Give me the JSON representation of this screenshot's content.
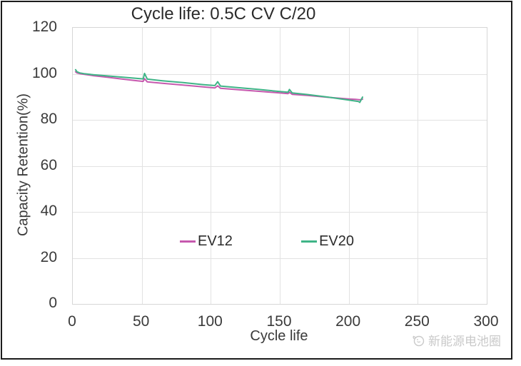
{
  "chart_data": {
    "type": "line",
    "title": "Cycle life: 0.5C CV C/20",
    "xlabel": "Cycle life",
    "ylabel": "Capacity Retention(%)",
    "xlim": [
      0,
      300
    ],
    "ylim": [
      0,
      120
    ],
    "x_ticks": [
      0,
      50,
      100,
      150,
      200,
      250,
      300
    ],
    "y_ticks": [
      0,
      20,
      40,
      60,
      80,
      100,
      120
    ],
    "grid": true,
    "legend_position": "inside-lower-center",
    "series": [
      {
        "name": "EV12",
        "color": "#c659ae",
        "points": [
          [
            2,
            100.9
          ],
          [
            3,
            100.4
          ],
          [
            5,
            100.1
          ],
          [
            8,
            99.8
          ],
          [
            15,
            99.2
          ],
          [
            25,
            98.5
          ],
          [
            35,
            97.8
          ],
          [
            45,
            97.1
          ],
          [
            51,
            96.7
          ],
          [
            52,
            97.9
          ],
          [
            54,
            96.5
          ],
          [
            65,
            95.9
          ],
          [
            80,
            95.1
          ],
          [
            95,
            94.3
          ],
          [
            103,
            93.9
          ],
          [
            105,
            94.8
          ],
          [
            107,
            93.7
          ],
          [
            120,
            93.1
          ],
          [
            135,
            92.4
          ],
          [
            150,
            91.7
          ],
          [
            156,
            91.4
          ],
          [
            157,
            92.0
          ],
          [
            159,
            91.1
          ],
          [
            170,
            90.6
          ],
          [
            185,
            89.8
          ],
          [
            200,
            89.1
          ],
          [
            205,
            88.9
          ],
          [
            208,
            88.7
          ],
          [
            210,
            89.0
          ]
        ]
      },
      {
        "name": "EV20",
        "color": "#3fb487",
        "points": [
          [
            2,
            101.8
          ],
          [
            3,
            100.9
          ],
          [
            5,
            100.4
          ],
          [
            8,
            100.1
          ],
          [
            15,
            99.6
          ],
          [
            25,
            99.1
          ],
          [
            35,
            98.6
          ],
          [
            45,
            98.1
          ],
          [
            51,
            97.8
          ],
          [
            52,
            100.2
          ],
          [
            54,
            97.7
          ],
          [
            65,
            97.0
          ],
          [
            80,
            96.2
          ],
          [
            95,
            95.3
          ],
          [
            103,
            94.9
          ],
          [
            105,
            96.6
          ],
          [
            107,
            94.7
          ],
          [
            120,
            94.0
          ],
          [
            135,
            93.2
          ],
          [
            150,
            92.3
          ],
          [
            156,
            92.0
          ],
          [
            157,
            93.2
          ],
          [
            159,
            91.7
          ],
          [
            170,
            91.0
          ],
          [
            185,
            89.9
          ],
          [
            200,
            88.6
          ],
          [
            207,
            88.0
          ],
          [
            208,
            87.6
          ],
          [
            210,
            89.9
          ]
        ]
      }
    ]
  },
  "watermark": {
    "text": "新能源电池圈",
    "icon": "smiley-face-logo",
    "color": "#c9c9c9"
  },
  "colors": {
    "frame_border": "#1b1b1b",
    "grid": "#e2e2e2",
    "plot_border": "#d6d6d6",
    "text": "#3a3a3a"
  }
}
